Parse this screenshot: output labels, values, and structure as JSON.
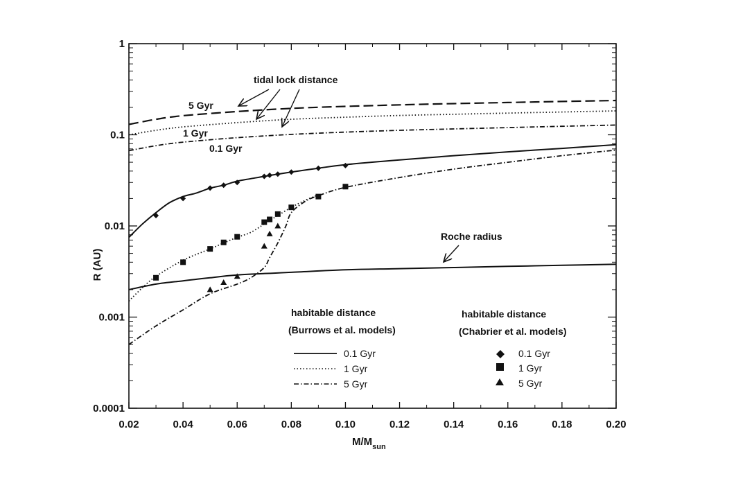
{
  "chart_data": {
    "type": "line",
    "xlabel": "M/M",
    "xlabel_sub": "sun",
    "ylabel": "R (AU)",
    "xlim": [
      0.02,
      0.2
    ],
    "ylim": [
      0.0001,
      1
    ],
    "yscale": "log",
    "grid": false,
    "x_ticks": [
      0.02,
      0.04,
      0.06,
      0.08,
      0.1,
      0.12,
      0.14,
      0.16,
      0.18,
      0.2
    ],
    "x_tick_labels": [
      "0.02",
      "0.04",
      "0.06",
      "0.08",
      "0.10",
      "0.12",
      "0.14",
      "0.16",
      "0.18",
      "0.20"
    ],
    "y_ticks": [
      0.0001,
      0.001,
      0.01,
      0.1,
      1
    ],
    "y_tick_labels": [
      "0.0001",
      "0.001",
      "0.01",
      "0.1",
      "1"
    ],
    "series": [
      {
        "group": "tidal",
        "style": "dashed",
        "label": "5 Gyr",
        "x": [
          0.02,
          0.03,
          0.04,
          0.06,
          0.08,
          0.1,
          0.12,
          0.14,
          0.16,
          0.18,
          0.2
        ],
        "y": [
          0.13,
          0.148,
          0.162,
          0.18,
          0.195,
          0.205,
          0.213,
          0.22,
          0.226,
          0.232,
          0.238
        ]
      },
      {
        "group": "tidal",
        "style": "dotted",
        "label": "1 Gyr",
        "x": [
          0.02,
          0.03,
          0.04,
          0.06,
          0.08,
          0.1,
          0.12,
          0.14,
          0.16,
          0.18,
          0.2
        ],
        "y": [
          0.1,
          0.112,
          0.122,
          0.136,
          0.148,
          0.156,
          0.163,
          0.168,
          0.173,
          0.178,
          0.183
        ]
      },
      {
        "group": "tidal",
        "style": "dashdot",
        "label": "0.1 Gyr",
        "x": [
          0.02,
          0.03,
          0.04,
          0.06,
          0.08,
          0.1,
          0.12,
          0.14,
          0.16,
          0.18,
          0.2
        ],
        "y": [
          0.067,
          0.076,
          0.083,
          0.093,
          0.101,
          0.107,
          0.112,
          0.116,
          0.12,
          0.124,
          0.128
        ]
      },
      {
        "group": "roche",
        "style": "solid",
        "x": [
          0.02,
          0.03,
          0.04,
          0.05,
          0.06,
          0.08,
          0.1,
          0.12,
          0.14,
          0.16,
          0.18,
          0.2
        ],
        "y": [
          0.002,
          0.0023,
          0.0025,
          0.0027,
          0.0029,
          0.0031,
          0.0033,
          0.0034,
          0.0035,
          0.0036,
          0.0037,
          0.0038
        ]
      },
      {
        "group": "habitable",
        "style": "solid",
        "name": "0.1 Gyr",
        "x": [
          0.02,
          0.025,
          0.03,
          0.035,
          0.04,
          0.045,
          0.05,
          0.055,
          0.06,
          0.065,
          0.07,
          0.075,
          0.08,
          0.09,
          0.1,
          0.12,
          0.14,
          0.16,
          0.18,
          0.2
        ],
        "y": [
          0.0075,
          0.0105,
          0.014,
          0.018,
          0.021,
          0.023,
          0.026,
          0.028,
          0.031,
          0.033,
          0.035,
          0.037,
          0.039,
          0.043,
          0.047,
          0.053,
          0.059,
          0.065,
          0.071,
          0.078
        ]
      },
      {
        "group": "habitable",
        "style": "dotted",
        "name": "1 Gyr",
        "x": [
          0.02,
          0.025,
          0.03,
          0.04,
          0.05,
          0.055,
          0.06,
          0.065,
          0.07,
          0.072,
          0.075,
          0.08,
          0.085,
          0.09
        ],
        "y": [
          0.0015,
          0.0021,
          0.0028,
          0.0042,
          0.0056,
          0.0065,
          0.0075,
          0.0085,
          0.0105,
          0.0115,
          0.013,
          0.016,
          0.019,
          0.022
        ]
      },
      {
        "group": "habitable",
        "style": "dashdot",
        "name": "5 Gyr",
        "x": [
          0.02,
          0.03,
          0.04,
          0.05,
          0.06,
          0.065,
          0.07,
          0.072,
          0.075,
          0.078,
          0.08,
          0.085,
          0.09,
          0.1,
          0.12,
          0.14,
          0.16,
          0.18,
          0.2
        ],
        "y": [
          0.0005,
          0.0008,
          0.0012,
          0.0018,
          0.0023,
          0.0027,
          0.0035,
          0.0045,
          0.0065,
          0.01,
          0.014,
          0.0185,
          0.0215,
          0.0265,
          0.034,
          0.042,
          0.05,
          0.059,
          0.068
        ]
      }
    ],
    "points": [
      {
        "marker": "diamond",
        "name": "0.1 Gyr",
        "x": [
          0.03,
          0.04,
          0.05,
          0.055,
          0.06,
          0.07,
          0.072,
          0.075,
          0.08,
          0.09,
          0.1
        ],
        "y": [
          0.013,
          0.02,
          0.026,
          0.028,
          0.03,
          0.035,
          0.036,
          0.037,
          0.039,
          0.043,
          0.046
        ]
      },
      {
        "marker": "square",
        "name": "1 Gyr",
        "x": [
          0.03,
          0.04,
          0.05,
          0.055,
          0.06,
          0.07,
          0.072,
          0.075,
          0.08,
          0.09,
          0.1
        ],
        "y": [
          0.0027,
          0.004,
          0.0056,
          0.0066,
          0.0076,
          0.011,
          0.0118,
          0.0135,
          0.016,
          0.021,
          0.027
        ]
      },
      {
        "marker": "triangle",
        "name": "5 Gyr",
        "x": [
          0.05,
          0.055,
          0.06,
          0.07,
          0.072,
          0.075
        ],
        "y": [
          0.002,
          0.0024,
          0.0028,
          0.006,
          0.0082,
          0.01
        ]
      }
    ],
    "annotations": {
      "tidal_title": "tidal lock distance",
      "tidal_5": "5 Gyr",
      "tidal_1": "1 Gyr",
      "tidal_01": "0.1 Gyr",
      "roche": "Roche radius"
    },
    "legend": {
      "burrows_title": "habitable distance",
      "burrows_sub": "(Burrows et al. models)",
      "chabrier_title": "habitable distance",
      "chabrier_sub": "(Chabrier et al. models)",
      "burrows_items": [
        "0.1 Gyr",
        "1 Gyr",
        "5 Gyr"
      ],
      "chabrier_items": [
        "0.1 Gyr",
        "1 Gyr",
        "5 Gyr"
      ],
      "placement": "lower-right"
    }
  }
}
